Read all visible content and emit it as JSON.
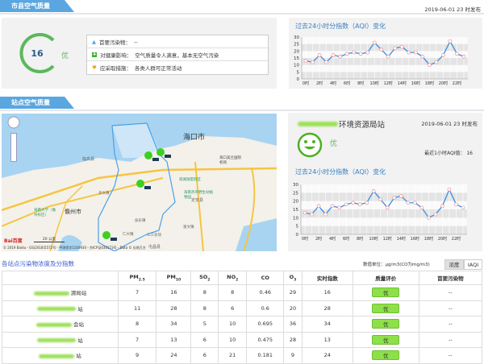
{
  "colors": {
    "accent": "#5aa6e0",
    "good": "#5cb85c",
    "line": "#3a8ee6",
    "badge": "#8ee04a"
  },
  "city": {
    "section_title": "市县空气质量",
    "publish_time": "2019-06-01 23 时发布",
    "aqi": "16",
    "level": "优",
    "info": [
      {
        "icon": "pollutant-icon",
        "label": "首要污染物：",
        "value": "--"
      },
      {
        "icon": "health-icon",
        "label": "对健康影响：",
        "value": "空气质量令人满意，基本无空气污染"
      },
      {
        "icon": "heart-icon",
        "label": "应采取措施：",
        "value": "各类人群可正常活动"
      }
    ],
    "chart_title": "过去24小时分指数（AQI）变化"
  },
  "station": {
    "section_title": "站点空气质量",
    "name": "环境资源局站",
    "publish_time": "2019-06-01 23 时发布",
    "level": "优",
    "latest_label": "最近1小时AQI值：",
    "latest_value": "16",
    "chart_title": "过去24小时分指数（AQI）变化"
  },
  "map": {
    "labels": [
      "海口市",
      "临高县",
      "儋州市",
      "澄迈县",
      "定安县",
      "屯昌县",
      "海南大学（儋州校区）",
      "海口美兰国际机场",
      "海南热带野生动植物园",
      "观澜湖度假区",
      "多文镇",
      "加乐镇",
      "仁兴镇",
      "富文镇",
      "三三农场"
    ],
    "scale": "20 公里",
    "copyright": "© 2019 Baidu - GS(2018)5572号 - 甲测资字1100930 - 京ICP证030173号 - Data © 长地万方",
    "logo": "Bai百度"
  },
  "chart_data": [
    {
      "type": "line",
      "title": "过去24小时分指数（AQI）变化",
      "x": [
        "0时",
        "1时",
        "2时",
        "3时",
        "4时",
        "5时",
        "6时",
        "7时",
        "8时",
        "9时",
        "10时",
        "11时",
        "12时",
        "13时",
        "14时",
        "15时",
        "16时",
        "17时",
        "18时",
        "19时",
        "20时",
        "21时",
        "22时",
        "23时"
      ],
      "xticks": [
        "0时",
        "2时",
        "4时",
        "6时",
        "8时",
        "10时",
        "12时",
        "14时",
        "16时",
        "18时",
        "20时",
        "22时"
      ],
      "values": [
        13,
        12,
        17,
        12,
        17,
        16,
        18,
        19,
        18,
        19,
        26,
        21,
        16,
        22,
        23,
        19,
        19,
        16,
        10,
        12,
        17,
        27,
        18,
        16
      ],
      "ylim": [
        0,
        30
      ],
      "yticks": [
        0,
        5,
        10,
        15,
        20,
        25,
        30
      ],
      "grid": true
    },
    {
      "type": "line",
      "title": "过去24小时分指数（AQI）变化",
      "x": [
        "0时",
        "1时",
        "2时",
        "3时",
        "4时",
        "5时",
        "6时",
        "7时",
        "8时",
        "9时",
        "10时",
        "11时",
        "12时",
        "13时",
        "14时",
        "15时",
        "16时",
        "17时",
        "18时",
        "19时",
        "20时",
        "21时",
        "22时",
        "23时"
      ],
      "xticks": [
        "0时",
        "2时",
        "4时",
        "6时",
        "8时",
        "10时",
        "12时",
        "14时",
        "16时",
        "18时",
        "20时",
        "22时"
      ],
      "values": [
        13,
        12,
        17,
        12,
        17,
        16,
        18,
        19,
        18,
        19,
        26,
        21,
        16,
        22,
        23,
        19,
        19,
        16,
        10,
        12,
        17,
        27,
        18,
        16
      ],
      "ylim": [
        0,
        30
      ],
      "yticks": [
        0,
        5,
        10,
        15,
        20,
        25,
        30
      ],
      "grid": true
    }
  ],
  "table": {
    "title": "各站点污染物浓度及分指数",
    "unit": "数值单位：μg/m3(CO为mg/m3)",
    "buttons": [
      "浓度",
      "IAQI"
    ],
    "headers": [
      "PM",
      "PM",
      "SO",
      "NO",
      "CO",
      "O",
      "实时指数",
      "质量评价",
      "首要污染物"
    ],
    "header_subs": [
      "2.5",
      "10",
      "2",
      "2",
      "",
      "3"
    ],
    "rows": [
      {
        "name": "源局站",
        "pm25": "7",
        "pm10": "16",
        "so2": "8",
        "no2": "8",
        "co": "0.46",
        "o3": "29",
        "aqi": "16",
        "level": "优",
        "primary": "--"
      },
      {
        "name": "站",
        "pm25": "11",
        "pm10": "28",
        "so2": "8",
        "no2": "6",
        "co": "0.6",
        "o3": "20",
        "aqi": "28",
        "level": "优",
        "primary": "--"
      },
      {
        "name": "会站",
        "pm25": "8",
        "pm10": "34",
        "so2": "5",
        "no2": "10",
        "co": "0.695",
        "o3": "36",
        "aqi": "34",
        "level": "优",
        "primary": "--"
      },
      {
        "name": "站",
        "pm25": "7",
        "pm10": "13",
        "so2": "6",
        "no2": "10",
        "co": "0.475",
        "o3": "28",
        "aqi": "13",
        "level": "优",
        "primary": "--"
      },
      {
        "name": "站",
        "pm25": "9",
        "pm10": "24",
        "so2": "6",
        "no2": "21",
        "co": "0.181",
        "o3": "9",
        "aqi": "24",
        "level": "优",
        "primary": "--"
      }
    ]
  }
}
